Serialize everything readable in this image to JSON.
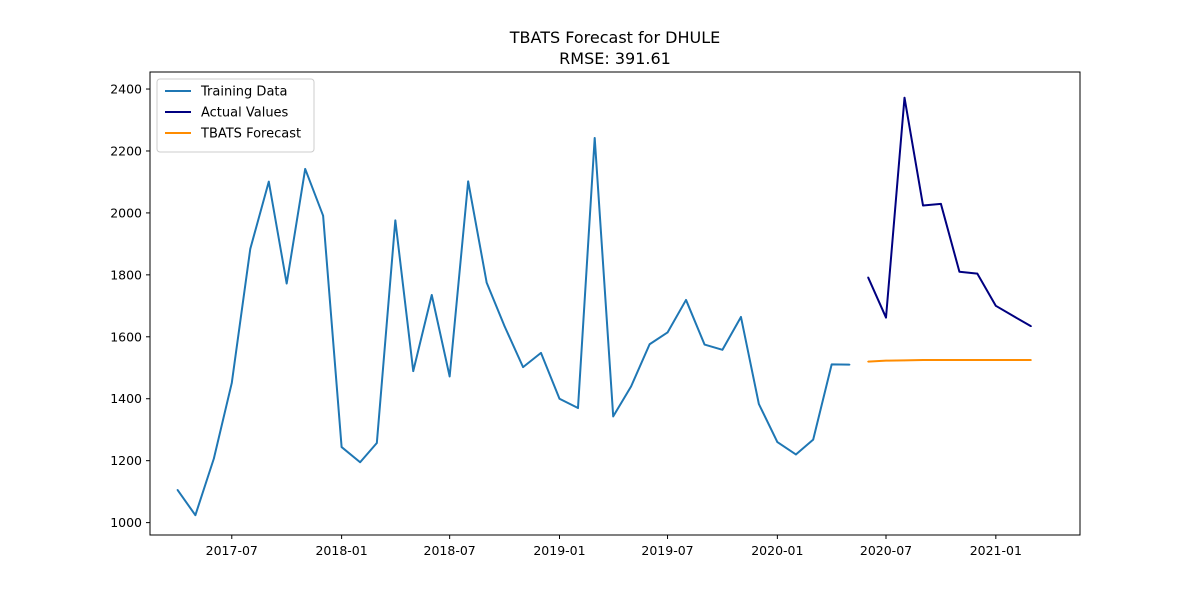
{
  "chart_data": {
    "type": "line",
    "title": "TBATS Forecast for DHULE",
    "subtitle": "RMSE: 391.61",
    "xlabel": "",
    "ylabel": "",
    "xlim": [
      "2017-02-14",
      "2021-05-22"
    ],
    "ylim": [
      960,
      2455
    ],
    "x_ticks": [
      "2017-07",
      "2018-01",
      "2018-07",
      "2019-01",
      "2019-07",
      "2020-01",
      "2020-07",
      "2021-01"
    ],
    "y_ticks": [
      1000,
      1200,
      1400,
      1600,
      1800,
      2000,
      2200,
      2400
    ],
    "grid": false,
    "legend": "top-left",
    "series": [
      {
        "name": "Training Data",
        "color": "#1f77b4",
        "x": [
          "2017-04",
          "2017-05",
          "2017-06",
          "2017-07",
          "2017-08",
          "2017-09",
          "2017-10",
          "2017-11",
          "2017-12",
          "2018-01",
          "2018-02",
          "2018-03",
          "2018-04",
          "2018-05",
          "2018-06",
          "2018-07",
          "2018-08",
          "2018-09",
          "2018-10",
          "2018-11",
          "2018-12",
          "2019-01",
          "2019-02",
          "2019-03",
          "2019-04",
          "2019-05",
          "2019-06",
          "2019-07",
          "2019-08",
          "2019-09",
          "2019-10",
          "2019-11",
          "2019-12",
          "2020-01",
          "2020-02",
          "2020-03",
          "2020-04",
          "2020-05"
        ],
        "values": [
          1106,
          1024,
          1207,
          1451,
          1884,
          2101,
          1772,
          2142,
          1991,
          1244,
          1195,
          1257,
          1976,
          1489,
          1735,
          1472,
          2102,
          1775,
          1634,
          1502,
          1548,
          1400,
          1370,
          2242,
          1343,
          1440,
          1576,
          1614,
          1719,
          1575,
          1558,
          1664,
          1383,
          1260,
          1220,
          1268,
          1511,
          1510
        ]
      },
      {
        "name": "Actual Values",
        "color": "#000080",
        "x": [
          "2020-06",
          "2020-07",
          "2020-08",
          "2020-09",
          "2020-10",
          "2020-11",
          "2020-12",
          "2021-01",
          "2021-02",
          "2021-03"
        ],
        "values": [
          1792,
          1662,
          2372,
          2024,
          2029,
          1810,
          1804,
          1700,
          1665,
          1634
        ]
      },
      {
        "name": "TBATS Forecast",
        "color": "#ff8c00",
        "x": [
          "2020-06",
          "2020-07",
          "2020-08",
          "2020-09",
          "2020-10",
          "2020-11",
          "2020-12",
          "2021-01",
          "2021-02",
          "2021-03"
        ],
        "values": [
          1520,
          1523,
          1524,
          1525,
          1525,
          1525,
          1525,
          1525,
          1525,
          1525
        ]
      }
    ]
  }
}
